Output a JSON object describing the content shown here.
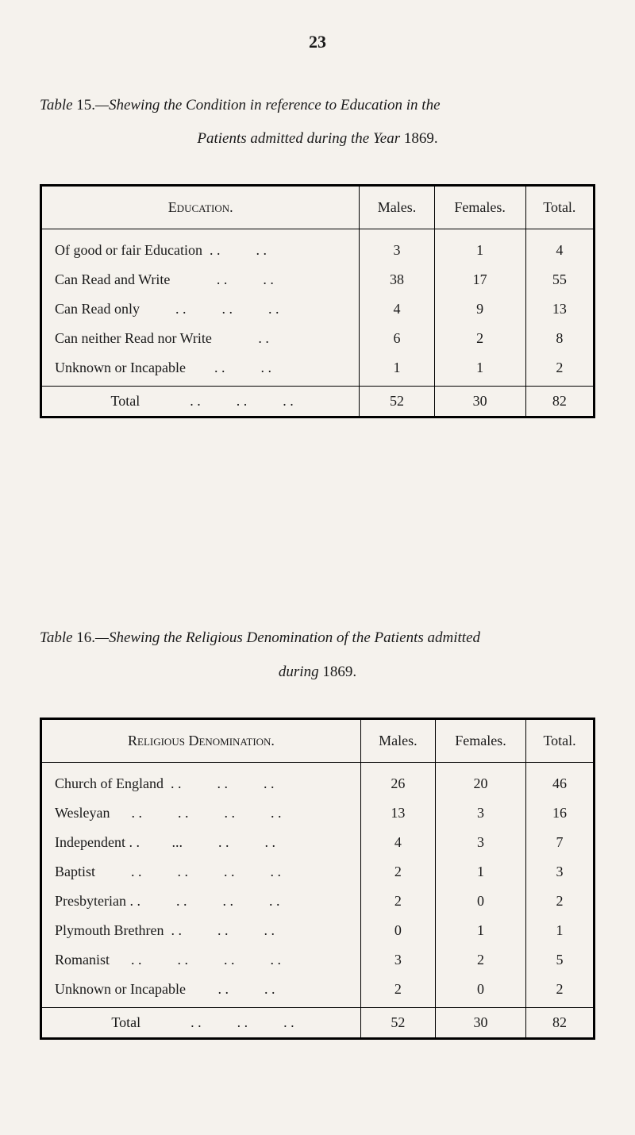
{
  "page_number": "23",
  "table15": {
    "title_prefix": "Table",
    "number": "15.",
    "title_line1": "—Shewing the Condition in reference to Education in the",
    "title_line2": "Patients admitted during the Year",
    "year": "1869.",
    "header_label": "Education.",
    "columns": [
      "Males.",
      "Females.",
      "Total."
    ],
    "rows": [
      {
        "label": "Of good or fair Education  . .          . .",
        "males": "3",
        "females": "1",
        "total": "4"
      },
      {
        "label": "Can Read and Write             . .          . .",
        "males": "38",
        "females": "17",
        "total": "55"
      },
      {
        "label": "Can Read only          . .          . .          . .",
        "males": "4",
        "females": "9",
        "total": "13"
      },
      {
        "label": "Can neither Read nor Write             . .",
        "males": "6",
        "females": "2",
        "total": "8"
      },
      {
        "label": "Unknown or Incapable        . .          . .",
        "males": "1",
        "females": "1",
        "total": "2"
      }
    ],
    "total_label": "Total              . .          . .          . .",
    "total_males": "52",
    "total_females": "30",
    "total_total": "82"
  },
  "table16": {
    "title_prefix": "Table",
    "number": "16.",
    "title_line1": "—Shewing the Religious Denomination of the Patients admitted",
    "title_line2": "during",
    "year": "1869.",
    "header_label": "Religious Denomination.",
    "columns": [
      "Males.",
      "Females.",
      "Total."
    ],
    "rows": [
      {
        "label": "Church of England  . .          . .          . .",
        "males": "26",
        "females": "20",
        "total": "46"
      },
      {
        "label": "Wesleyan      . .          . .          . .          . .",
        "males": "13",
        "females": "3",
        "total": "16"
      },
      {
        "label": "Independent . .         ...          . .          . .",
        "males": "4",
        "females": "3",
        "total": "7"
      },
      {
        "label": "Baptist          . .          . .          . .          . .",
        "males": "2",
        "females": "1",
        "total": "3"
      },
      {
        "label": "Presbyterian . .          . .          . .          . .",
        "males": "2",
        "females": "0",
        "total": "2"
      },
      {
        "label": "Plymouth Brethren  . .          . .          . .",
        "males": "0",
        "females": "1",
        "total": "1"
      },
      {
        "label": "Romanist      . .          . .          . .          . .",
        "males": "3",
        "females": "2",
        "total": "5"
      },
      {
        "label": "Unknown or Incapable         . .          . .",
        "males": "2",
        "females": "0",
        "total": "2"
      }
    ],
    "total_label": "Total              . .          . .          . .",
    "total_males": "52",
    "total_females": "30",
    "total_total": "82"
  },
  "colors": {
    "background": "#f5f2ed",
    "text": "#1a1a1a",
    "border": "#000000"
  }
}
